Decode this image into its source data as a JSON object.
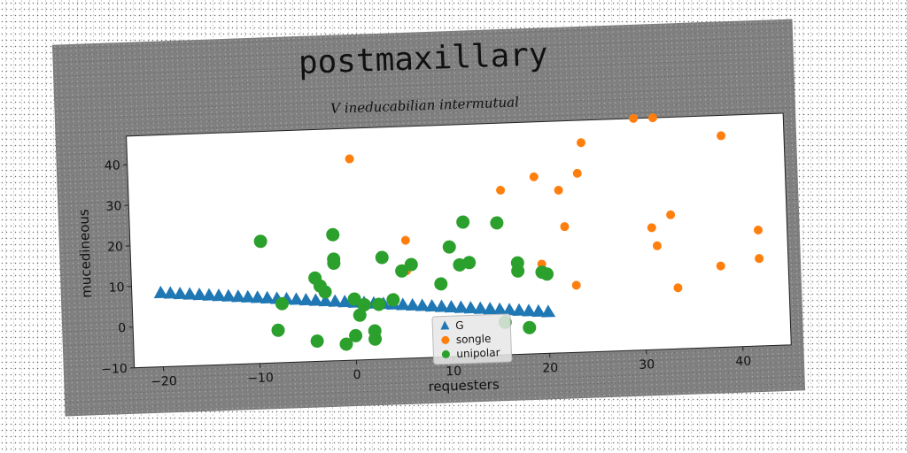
{
  "chart_data": {
    "type": "scatter",
    "title": "postmaxillary",
    "subtitle": "V ineducabilian intermutual",
    "xlabel": "requesters",
    "ylabel": "mucedineous",
    "xlim": [
      -23,
      45
    ],
    "ylim": [
      -10,
      47
    ],
    "xticks": [
      -20,
      -10,
      0,
      10,
      20,
      30,
      40
    ],
    "yticks": [
      -10,
      0,
      10,
      20,
      30,
      40
    ],
    "grid": false,
    "legend_position": "lower-center",
    "series": [
      {
        "name": "G",
        "marker": "triangle",
        "color": "#1f77b4",
        "x": [
          -20,
          -19,
          -18,
          -17,
          -16,
          -15,
          -14,
          -13,
          -12,
          -11,
          -10,
          -9,
          -8,
          -7,
          -6,
          -5,
          -4,
          -3,
          -2,
          -1,
          0,
          1,
          2,
          3,
          4,
          5,
          6,
          7,
          8,
          9,
          10,
          11,
          12,
          13,
          14,
          15,
          16,
          17,
          18,
          19,
          20
        ],
        "y": [
          8.0,
          7.8,
          7.6,
          7.4,
          7.2,
          7.0,
          6.8,
          6.6,
          6.4,
          6.2,
          6.0,
          5.8,
          5.6,
          5.4,
          5.2,
          5.0,
          4.8,
          4.6,
          4.4,
          4.2,
          4.0,
          3.8,
          3.6,
          3.4,
          3.2,
          3.0,
          2.8,
          2.6,
          2.4,
          2.2,
          2.0,
          1.8,
          1.6,
          1.4,
          1.2,
          1.0,
          0.8,
          0.6,
          0.4,
          0.2,
          0.0
        ]
      },
      {
        "name": "songle",
        "marker": "circle",
        "color": "#ff7f0e",
        "x": [
          0,
          5.5,
          5.5,
          15.5,
          19,
          19.5,
          20,
          21.5,
          22,
          23,
          23.5,
          24,
          29.5,
          31.5,
          31,
          31.5,
          33,
          33.5,
          38,
          38.5,
          42,
          42
        ],
        "y": [
          39.5,
          19,
          11.5,
          30.5,
          33.5,
          12,
          9,
          30,
          21,
          6.5,
          34,
          41.5,
          47,
          47,
          20,
          15.5,
          23,
          5,
          10,
          42,
          18.5,
          11.5
        ]
      },
      {
        "name": "unipolar",
        "marker": "circle",
        "color": "#2ca02c",
        "x": [
          -9.5,
          -8,
          -7.5,
          -4,
          -3.5,
          -4,
          -3,
          -2,
          -2,
          -2,
          -1,
          0,
          0,
          0.5,
          1,
          2,
          2,
          2.5,
          3,
          4,
          5,
          6,
          9,
          10,
          11,
          11.5,
          12,
          15,
          17,
          17,
          18,
          19.5,
          20,
          15.5
        ],
        "y": [
          20,
          -2,
          4.5,
          10.5,
          8.5,
          -5,
          7,
          21,
          15,
          14,
          -6,
          5,
          -4,
          1,
          3.5,
          -3,
          -5,
          3.5,
          15,
          4.5,
          11.5,
          13,
          8,
          17,
          12.5,
          23,
          13,
          22.5,
          12.5,
          10.5,
          -3.5,
          10,
          9.5,
          -2
        ]
      }
    ]
  }
}
